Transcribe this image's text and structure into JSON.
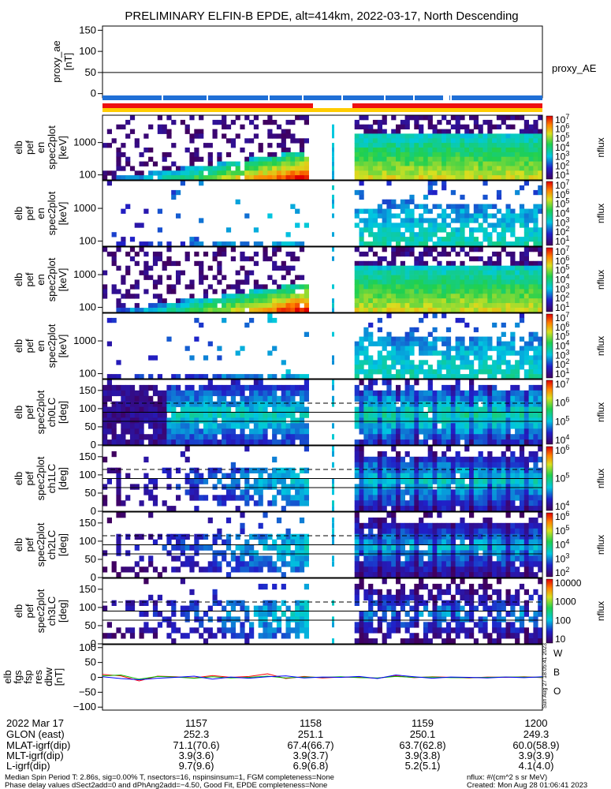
{
  "title": "PRELIMINARY ELFIN-B EPDE, alt=414km, 2022-03-17, North Descending",
  "colors": {
    "bar_blue": "#1f6fd6",
    "bar_red": "#ee1111",
    "bar_yellow": "#ffcc00"
  },
  "panels": [
    {
      "id": "proxy_ae",
      "ylabel": [
        "proxy_ae",
        "[nT]"
      ],
      "ticks": [
        "150",
        "100",
        "50",
        "0"
      ],
      "legend": "proxy_AE"
    },
    {
      "id": "spec_en_1",
      "ylabel": [
        "elb",
        "pef",
        "en",
        "spec2plot",
        "[keV]"
      ],
      "ticks": [
        "1000",
        "100"
      ],
      "cb_ticks": [
        "10",
        "10",
        "10",
        "10",
        "10",
        "10",
        "10"
      ],
      "cb_exp": [
        "7",
        "6",
        "5",
        "4",
        "3",
        "2",
        "1"
      ],
      "cb_label": "nflux"
    },
    {
      "id": "spec_en_2",
      "ylabel": [
        "elb",
        "pef",
        "en",
        "spec2plot",
        "[keV]"
      ],
      "ticks": [
        "1000",
        "100"
      ],
      "cb_ticks": [
        "10",
        "10",
        "10",
        "10",
        "10",
        "10",
        "10"
      ],
      "cb_exp": [
        "7",
        "6",
        "5",
        "4",
        "3",
        "2",
        "1"
      ],
      "cb_label": "nflux"
    },
    {
      "id": "spec_en_3",
      "ylabel": [
        "elb",
        "pef",
        "en",
        "spec2plot",
        "[keV]"
      ],
      "ticks": [
        "1000",
        "100"
      ],
      "cb_ticks": [
        "10",
        "10",
        "10",
        "10",
        "10",
        "10",
        "10"
      ],
      "cb_exp": [
        "7",
        "6",
        "5",
        "4",
        "3",
        "2",
        "1"
      ],
      "cb_label": "nflux"
    },
    {
      "id": "spec_en_4",
      "ylabel": [
        "elb",
        "pef",
        "en",
        "spec2plot",
        "[keV]"
      ],
      "ticks": [
        "1000",
        "100"
      ],
      "cb_ticks": [
        "10",
        "10",
        "10",
        "10",
        "10",
        "10",
        "10"
      ],
      "cb_exp": [
        "7",
        "6",
        "5",
        "4",
        "3",
        "2",
        "1"
      ],
      "cb_label": "nflux"
    },
    {
      "id": "spec_pa_0",
      "ylabel": [
        "elb",
        "pef",
        "spec2plot",
        "ch0LC",
        "[deg]"
      ],
      "ticks": [
        "150",
        "100",
        "50",
        "0"
      ],
      "cb_ticks": [
        "10",
        "10",
        "10",
        "10"
      ],
      "cb_exp": [
        "7",
        "6",
        "5",
        "4"
      ],
      "cb_label": "nflux"
    },
    {
      "id": "spec_pa_1",
      "ylabel": [
        "elb",
        "pef",
        "spec2plot",
        "ch1LC",
        "[deg]"
      ],
      "ticks": [
        "150",
        "100",
        "50",
        "0"
      ],
      "cb_ticks": [
        "10",
        "10",
        "10"
      ],
      "cb_exp": [
        "6",
        "5",
        "4"
      ],
      "cb_label": "nflux"
    },
    {
      "id": "spec_pa_2",
      "ylabel": [
        "elb",
        "pef",
        "spec2plot",
        "ch2LC",
        "[deg]"
      ],
      "ticks": [
        "150",
        "100",
        "50",
        "0"
      ],
      "cb_ticks": [
        "10",
        "10",
        "10",
        "10",
        "10"
      ],
      "cb_exp": [
        "6",
        "5",
        "4",
        "3",
        "2"
      ],
      "cb_label": "nflux"
    },
    {
      "id": "spec_pa_3",
      "ylabel": [
        "elb",
        "pef",
        "spec2plot",
        "ch3LC",
        "[deg]"
      ],
      "ticks": [
        "150",
        "100",
        "50",
        "0"
      ],
      "cb_ticks": [
        "10000",
        "1000",
        "100",
        "10"
      ],
      "cb_exp": [
        "",
        "",
        "",
        ""
      ],
      "cb_label": "nflux"
    },
    {
      "id": "dbw",
      "ylabel": [
        "elb",
        "fgs",
        "fsp",
        "res",
        "dbw",
        "[nT]"
      ],
      "ticks": [
        "100",
        "50",
        "0",
        "−50",
        "−100"
      ],
      "legend": [
        "W",
        "B",
        "O"
      ],
      "legend_colors": [
        "#ff0000",
        "#00bb00",
        "#0000ff"
      ]
    }
  ],
  "x_axis": {
    "date": "2022 Mar 17",
    "ticks": [
      "1157",
      "1158",
      "1159",
      "1200"
    ],
    "rows": [
      {
        "label": "GLON (east)",
        "values": [
          "252.3",
          "251.1",
          "250.1",
          "249.3"
        ]
      },
      {
        "label": "MLAT-igrf(dip)",
        "values": [
          "71.1(70.6)",
          "67.4(66.7)",
          "63.7(62.8)",
          "60.0(58.9)"
        ]
      },
      {
        "label": "MLT-igrf(dip)",
        "values": [
          "3.9(3.6)",
          "3.9(3.7)",
          "3.9(3.8)",
          "3.9(3.9)"
        ]
      },
      {
        "label": "L-igrf(dip)",
        "values": [
          "9.7(9.6)",
          "6.9(6.8)",
          "5.2(5.1)",
          "4.1(4.0)"
        ]
      }
    ]
  },
  "footer": {
    "line1": "Median Spin Period T: 2.86s, sig=0.00% T, nsectors=16, nspinsinsum=1, FGM completeness=None",
    "line2": "Phase delay values dSect2add=0 and dPhAng2add=−4.50, Good Fit, EPDE completeness=None",
    "units": "nflux: #/(cm^2 s sr MeV)",
    "created": "Created: Mon Aug 28 01:06:41 2023",
    "side": "Sun Aug 27 18:05:41 2023"
  },
  "chart_data": {
    "type": "heatmap",
    "title": "PRELIMINARY ELFIN-B EPDE, alt=414km, 2022-03-17, North Descending",
    "x_ticks": [
      "1157",
      "1158",
      "1159",
      "1200"
    ],
    "proxy_ae": {
      "ylim": [
        -10,
        160
      ],
      "value": 50
    },
    "energy_ylim": [
      70,
      7000
    ],
    "pitch_ylim": [
      0,
      180
    ],
    "pitch_lines": [
      65,
      90,
      115
    ],
    "dbw": {
      "ylim": [
        -110,
        110
      ],
      "series": [
        {
          "name": "W",
          "color": "#ff0000",
          "values": [
            10,
            5,
            -12,
            4,
            2,
            -2,
            6,
            0,
            3,
            12,
            -4,
            3,
            -2,
            1,
            0,
            -3,
            5,
            -1,
            2,
            0,
            -2,
            1,
            0,
            2,
            -1
          ]
        },
        {
          "name": "B",
          "color": "#00bb00",
          "values": [
            5,
            8,
            -6,
            3,
            1,
            -3,
            2,
            -2,
            0,
            4,
            -2,
            1,
            0,
            2,
            -1,
            -2,
            3,
            0,
            1,
            -1,
            -1,
            0,
            1,
            1,
            0
          ]
        },
        {
          "name": "O",
          "color": "#0000ff",
          "values": [
            2,
            -4,
            -8,
            -3,
            0,
            4,
            -6,
            1,
            -3,
            2,
            5,
            -2,
            1,
            0,
            3,
            -4,
            8,
            2,
            -3,
            1,
            0,
            -2,
            1,
            -1,
            2
          ]
        }
      ]
    }
  }
}
